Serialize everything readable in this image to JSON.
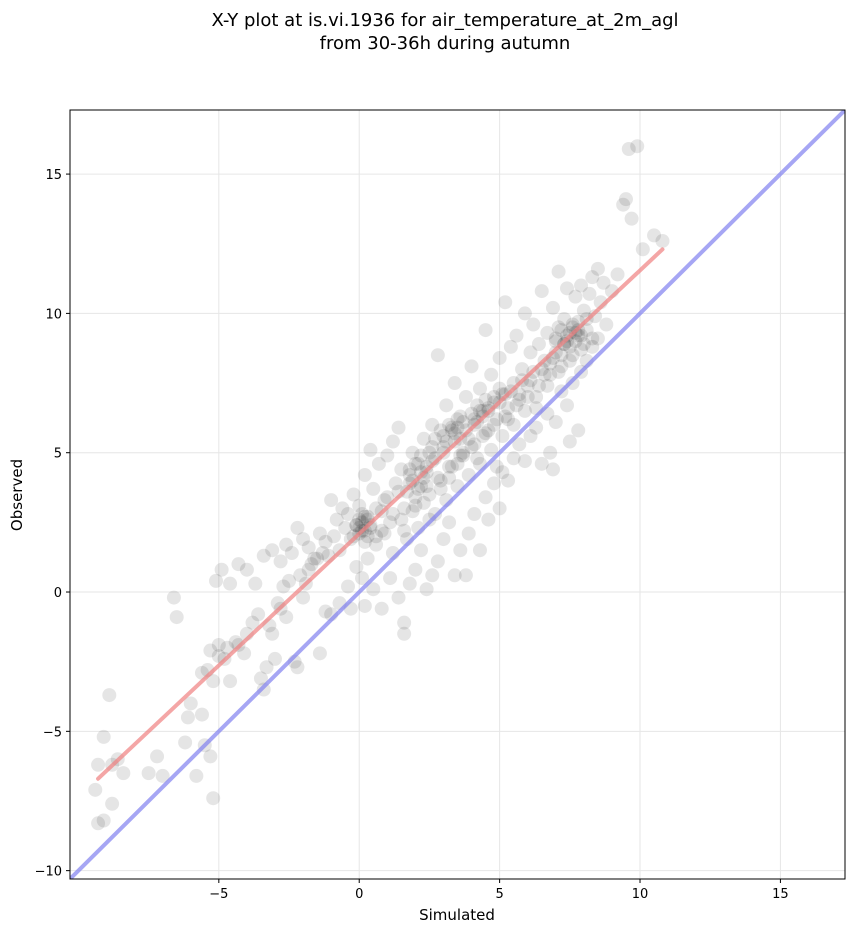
{
  "chart_data": {
    "type": "scatter",
    "title": "X-Y plot at is.vi.1936 for air_temperature_at_2m_agl",
    "subtitle": "from 30-36h during autumn",
    "xlabel": "Simulated",
    "ylabel": "Observed",
    "xlim": [
      -10.3,
      17.3
    ],
    "ylim": [
      -10.3,
      17.3
    ],
    "xticks": [
      -5,
      0,
      5,
      10,
      15
    ],
    "yticks": [
      -10,
      -5,
      0,
      5,
      10,
      15
    ],
    "xtick_labels": [
      "−5",
      "0",
      "5",
      "10",
      "15"
    ],
    "ytick_labels": [
      "−10",
      "−5",
      "0",
      "5",
      "10",
      "15"
    ],
    "grid": true,
    "colors": {
      "points": "#000000",
      "regression_line": "#f08080",
      "identity_line": "#8080f0",
      "grid": "#e6e6e6"
    },
    "points_opacity": 0.1,
    "lines": [
      {
        "kind": "regression",
        "x": [
          -9.3,
          10.8
        ],
        "y": [
          -6.7,
          12.3
        ]
      },
      {
        "kind": "identity",
        "x": [
          -10.3,
          17.3
        ],
        "y": [
          -10.3,
          17.3
        ]
      }
    ],
    "points": [
      [
        -9.4,
        -7.1
      ],
      [
        -9.3,
        -8.3
      ],
      [
        -9.1,
        -8.2
      ],
      [
        -9.3,
        -6.2
      ],
      [
        -9.1,
        -5.2
      ],
      [
        -8.9,
        -3.7
      ],
      [
        -8.8,
        -6.2
      ],
      [
        -8.6,
        -6.0
      ],
      [
        -8.8,
        -7.6
      ],
      [
        -8.4,
        -6.5
      ],
      [
        -7.5,
        -6.5
      ],
      [
        -7.2,
        -5.9
      ],
      [
        -7.0,
        -6.6
      ],
      [
        -6.6,
        -0.2
      ],
      [
        -6.5,
        -0.9
      ],
      [
        -6.2,
        -5.4
      ],
      [
        -6.1,
        -4.5
      ],
      [
        -6.0,
        -4.0
      ],
      [
        -5.8,
        -6.6
      ],
      [
        -5.6,
        -4.4
      ],
      [
        -5.5,
        -5.5
      ],
      [
        -5.3,
        -5.9
      ],
      [
        -5.2,
        -7.4
      ],
      [
        -5.4,
        -2.8
      ],
      [
        -5.6,
        -2.9
      ],
      [
        -5.2,
        -3.2
      ],
      [
        -5.3,
        -2.1
      ],
      [
        -5.0,
        -2.3
      ],
      [
        -4.8,
        -2.4
      ],
      [
        -4.7,
        -2.0
      ],
      [
        -5.0,
        -1.9
      ],
      [
        -4.6,
        -3.2
      ],
      [
        -4.4,
        -1.8
      ],
      [
        -4.3,
        -1.9
      ],
      [
        -4.1,
        -2.2
      ],
      [
        -4.0,
        -1.5
      ],
      [
        -3.8,
        -1.1
      ],
      [
        -3.6,
        -0.8
      ],
      [
        -3.5,
        -3.1
      ],
      [
        -3.4,
        -3.5
      ],
      [
        -3.3,
        -2.7
      ],
      [
        -3.2,
        -1.2
      ],
      [
        -3.1,
        -1.5
      ],
      [
        -3.0,
        -2.4
      ],
      [
        -2.9,
        -0.4
      ],
      [
        -2.8,
        -0.6
      ],
      [
        -2.7,
        0.2
      ],
      [
        -2.6,
        -0.9
      ],
      [
        -2.5,
        0.4
      ],
      [
        -2.3,
        -2.5
      ],
      [
        -2.2,
        -2.7
      ],
      [
        -2.1,
        0.6
      ],
      [
        -2.0,
        -0.2
      ],
      [
        -1.9,
        0.3
      ],
      [
        -1.8,
        0.8
      ],
      [
        -1.7,
        1.0
      ],
      [
        -1.5,
        1.2
      ],
      [
        -1.4,
        -2.2
      ],
      [
        -1.3,
        1.4
      ],
      [
        -1.2,
        -0.7
      ],
      [
        -5.1,
        0.4
      ],
      [
        -4.9,
        0.8
      ],
      [
        -4.6,
        0.3
      ],
      [
        -4.3,
        1.0
      ],
      [
        -4.0,
        0.8
      ],
      [
        -3.7,
        0.3
      ],
      [
        -3.4,
        1.3
      ],
      [
        -3.1,
        1.5
      ],
      [
        -2.8,
        1.1
      ],
      [
        -2.6,
        1.7
      ],
      [
        -2.4,
        1.4
      ],
      [
        -2.2,
        2.3
      ],
      [
        -2.0,
        1.9
      ],
      [
        -1.8,
        1.6
      ],
      [
        -1.6,
        1.2
      ],
      [
        -1.4,
        2.1
      ],
      [
        -1.2,
        1.8
      ],
      [
        -1.1,
        1.3
      ],
      [
        -1.0,
        3.3
      ],
      [
        -0.9,
        2.0
      ],
      [
        -0.8,
        2.6
      ],
      [
        -0.7,
        1.5
      ],
      [
        -0.6,
        3.0
      ],
      [
        -0.5,
        2.3
      ],
      [
        -0.4,
        2.8
      ],
      [
        -0.3,
        1.9
      ],
      [
        -0.2,
        3.5
      ],
      [
        -0.1,
        2.4
      ],
      [
        0.0,
        3.1
      ],
      [
        0.1,
        2.2
      ],
      [
        0.2,
        4.2
      ],
      [
        0.3,
        2.7
      ],
      [
        0.4,
        5.1
      ],
      [
        0.5,
        3.7
      ],
      [
        0.6,
        2.0
      ],
      [
        0.7,
        4.6
      ],
      [
        0.8,
        2.9
      ],
      [
        0.9,
        3.3
      ],
      [
        1.0,
        4.9
      ],
      [
        1.1,
        2.5
      ],
      [
        1.2,
        5.4
      ],
      [
        1.3,
        3.9
      ],
      [
        1.4,
        5.9
      ],
      [
        1.5,
        4.4
      ],
      [
        1.6,
        2.2
      ],
      [
        1.7,
        3.6
      ],
      [
        1.8,
        4.2
      ],
      [
        1.9,
        5.0
      ],
      [
        2.0,
        3.1
      ],
      [
        2.1,
        4.6
      ],
      [
        2.2,
        3.8
      ],
      [
        2.3,
        5.5
      ],
      [
        2.4,
        4.3
      ],
      [
        2.5,
        2.6
      ],
      [
        2.6,
        6.0
      ],
      [
        2.7,
        4.8
      ],
      [
        2.8,
        8.5
      ],
      [
        2.9,
        3.7
      ],
      [
        3.0,
        5.2
      ],
      [
        3.1,
        6.7
      ],
      [
        3.2,
        4.1
      ],
      [
        3.3,
        5.8
      ],
      [
        3.4,
        7.5
      ],
      [
        3.5,
        4.6
      ],
      [
        3.6,
        6.3
      ],
      [
        3.7,
        5.0
      ],
      [
        3.8,
        7.0
      ],
      [
        3.9,
        5.5
      ],
      [
        4.0,
        8.1
      ],
      [
        4.1,
        6.0
      ],
      [
        4.2,
        4.8
      ],
      [
        4.3,
        7.3
      ],
      [
        4.4,
        6.5
      ],
      [
        4.5,
        9.4
      ],
      [
        4.6,
        5.8
      ],
      [
        4.7,
        7.8
      ],
      [
        4.8,
        6.8
      ],
      [
        4.9,
        4.5
      ],
      [
        5.0,
        8.4
      ],
      [
        5.1,
        7.1
      ],
      [
        5.2,
        10.4
      ],
      [
        5.3,
        6.2
      ],
      [
        5.4,
        8.8
      ],
      [
        5.5,
        7.5
      ],
      [
        5.6,
        9.2
      ],
      [
        5.7,
        6.9
      ],
      [
        5.8,
        8.0
      ],
      [
        5.9,
        10.0
      ],
      [
        6.0,
        7.4
      ],
      [
        6.1,
        8.6
      ],
      [
        6.2,
        9.6
      ],
      [
        6.3,
        6.6
      ],
      [
        6.4,
        8.9
      ],
      [
        6.5,
        10.8
      ],
      [
        6.6,
        7.8
      ],
      [
        6.7,
        9.3
      ],
      [
        6.8,
        8.2
      ],
      [
        6.9,
        10.2
      ],
      [
        7.0,
        9.0
      ],
      [
        7.1,
        11.5
      ],
      [
        7.2,
        8.5
      ],
      [
        7.3,
        9.8
      ],
      [
        7.4,
        10.9
      ],
      [
        7.5,
        8.8
      ],
      [
        7.6,
        9.5
      ],
      [
        7.7,
        10.6
      ],
      [
        7.8,
        9.2
      ],
      [
        7.9,
        11.0
      ],
      [
        8.0,
        10.1
      ],
      [
        8.1,
        9.4
      ],
      [
        8.2,
        10.7
      ],
      [
        8.3,
        11.3
      ],
      [
        8.4,
        9.9
      ],
      [
        8.5,
        11.6
      ],
      [
        8.6,
        10.4
      ],
      [
        8.7,
        11.1
      ],
      [
        8.8,
        9.6
      ],
      [
        9.0,
        10.8
      ],
      [
        9.2,
        11.4
      ],
      [
        9.4,
        13.9
      ],
      [
        9.5,
        14.1
      ],
      [
        9.6,
        15.9
      ],
      [
        9.7,
        13.4
      ],
      [
        9.9,
        16.0
      ],
      [
        10.1,
        12.3
      ],
      [
        10.5,
        12.8
      ],
      [
        10.8,
        12.6
      ],
      [
        -0.3,
        -0.6
      ],
      [
        0.2,
        -0.5
      ],
      [
        0.5,
        0.1
      ],
      [
        0.8,
        -0.6
      ],
      [
        1.1,
        0.5
      ],
      [
        1.4,
        -0.2
      ],
      [
        1.6,
        -1.5
      ],
      [
        1.6,
        -1.1
      ],
      [
        1.8,
        0.3
      ],
      [
        2.0,
        0.8
      ],
      [
        2.2,
        1.5
      ],
      [
        2.4,
        0.1
      ],
      [
        2.6,
        0.6
      ],
      [
        2.8,
        1.1
      ],
      [
        3.0,
        1.9
      ],
      [
        3.2,
        2.5
      ],
      [
        3.4,
        0.6
      ],
      [
        3.6,
        1.5
      ],
      [
        3.8,
        0.6
      ],
      [
        3.9,
        2.1
      ],
      [
        4.1,
        2.8
      ],
      [
        4.3,
        1.5
      ],
      [
        4.5,
        3.4
      ],
      [
        4.6,
        2.6
      ],
      [
        4.8,
        3.9
      ],
      [
        5.0,
        3.0
      ],
      [
        5.1,
        4.3
      ],
      [
        5.3,
        4.0
      ],
      [
        5.5,
        4.8
      ],
      [
        5.7,
        5.3
      ],
      [
        5.9,
        4.7
      ],
      [
        6.1,
        5.6
      ],
      [
        6.3,
        5.9
      ],
      [
        6.5,
        4.6
      ],
      [
        6.7,
        6.4
      ],
      [
        6.8,
        5.0
      ],
      [
        6.9,
        4.4
      ],
      [
        7.0,
        6.1
      ],
      [
        7.2,
        7.2
      ],
      [
        7.4,
        6.7
      ],
      [
        7.5,
        5.4
      ],
      [
        7.6,
        7.5
      ],
      [
        7.8,
        5.8
      ],
      [
        7.9,
        7.9
      ],
      [
        8.1,
        8.3
      ],
      [
        8.3,
        8.8
      ],
      [
        8.5,
        9.1
      ],
      [
        -1.0,
        -0.8
      ],
      [
        -0.7,
        -0.4
      ],
      [
        -0.4,
        0.2
      ],
      [
        -0.1,
        0.9
      ],
      [
        0.1,
        0.5
      ],
      [
        0.3,
        1.2
      ],
      [
        0.6,
        1.7
      ],
      [
        0.9,
        2.1
      ],
      [
        1.2,
        1.4
      ],
      [
        1.5,
        2.6
      ],
      [
        1.7,
        1.9
      ],
      [
        1.9,
        2.9
      ],
      [
        2.1,
        2.3
      ],
      [
        2.3,
        3.2
      ],
      [
        2.5,
        3.5
      ],
      [
        2.7,
        2.8
      ],
      [
        2.9,
        4.0
      ],
      [
        3.1,
        3.3
      ],
      [
        3.3,
        4.5
      ],
      [
        3.5,
        3.8
      ],
      [
        3.7,
        4.9
      ],
      [
        3.9,
        4.2
      ],
      [
        4.1,
        5.3
      ],
      [
        4.3,
        4.6
      ],
      [
        4.5,
        5.7
      ],
      [
        4.7,
        5.1
      ],
      [
        4.9,
        6.2
      ],
      [
        5.1,
        5.6
      ],
      [
        5.3,
        6.6
      ],
      [
        5.5,
        6.0
      ],
      [
        5.7,
        7.1
      ],
      [
        5.9,
        6.5
      ],
      [
        6.1,
        7.6
      ],
      [
        6.3,
        7.0
      ],
      [
        6.5,
        8.0
      ],
      [
        6.7,
        7.4
      ],
      [
        6.9,
        8.4
      ],
      [
        7.1,
        7.9
      ],
      [
        7.3,
        8.9
      ],
      [
        7.5,
        8.3
      ],
      [
        7.7,
        9.3
      ],
      [
        7.9,
        8.7
      ],
      [
        8.1,
        9.8
      ],
      [
        8.3,
        9.1
      ],
      [
        -0.2,
        2.0
      ],
      [
        0.0,
        2.6
      ],
      [
        0.2,
        1.8
      ],
      [
        0.4,
        2.4
      ],
      [
        0.6,
        3.0
      ],
      [
        0.8,
        2.2
      ],
      [
        1.0,
        3.4
      ],
      [
        1.2,
        2.8
      ],
      [
        1.4,
        3.6
      ],
      [
        1.6,
        3.0
      ],
      [
        1.8,
        3.9
      ],
      [
        2.0,
        3.4
      ],
      [
        2.2,
        4.3
      ],
      [
        2.4,
        3.8
      ],
      [
        2.6,
        4.7
      ],
      [
        2.8,
        4.1
      ],
      [
        3.0,
        5.0
      ],
      [
        3.2,
        4.5
      ],
      [
        3.4,
        5.4
      ],
      [
        3.6,
        4.9
      ],
      [
        3.8,
        5.8
      ],
      [
        4.0,
        5.2
      ],
      [
        4.2,
        6.1
      ],
      [
        4.4,
        5.6
      ],
      [
        4.6,
        6.5
      ],
      [
        4.8,
        6.0
      ],
      [
        5.0,
        6.8
      ],
      [
        5.2,
        6.3
      ],
      [
        5.4,
        7.2
      ],
      [
        5.6,
        6.7
      ],
      [
        5.8,
        7.6
      ],
      [
        6.0,
        7.0
      ],
      [
        6.2,
        7.9
      ],
      [
        6.4,
        7.4
      ],
      [
        6.6,
        8.3
      ],
      [
        6.8,
        7.8
      ],
      [
        7.0,
        8.6
      ],
      [
        7.2,
        8.1
      ],
      [
        7.4,
        9.0
      ],
      [
        7.6,
        8.5
      ],
      [
        7.8,
        9.4
      ],
      [
        8.0,
        8.9
      ],
      [
        3.0,
        5.6
      ],
      [
        3.2,
        6.0
      ],
      [
        3.4,
        5.7
      ],
      [
        3.5,
        6.2
      ],
      [
        3.6,
        5.5
      ],
      [
        3.7,
        6.1
      ],
      [
        3.3,
        5.9
      ],
      [
        3.1,
        5.4
      ],
      [
        2.9,
        5.8
      ],
      [
        3.5,
        5.9
      ],
      [
        0.0,
        2.3
      ],
      [
        0.1,
        2.5
      ],
      [
        0.2,
        2.2
      ],
      [
        0.3,
        2.6
      ],
      [
        -0.1,
        2.4
      ],
      [
        0.4,
        2.3
      ],
      [
        0.2,
        2.7
      ],
      [
        0.0,
        2.1
      ],
      [
        0.3,
        2.0
      ],
      [
        0.1,
        2.8
      ],
      [
        7.0,
        9.1
      ],
      [
        7.2,
        9.4
      ],
      [
        7.4,
        9.2
      ],
      [
        7.6,
        9.6
      ],
      [
        7.3,
        8.9
      ],
      [
        7.5,
        9.3
      ],
      [
        7.7,
        9.0
      ],
      [
        7.1,
        9.5
      ],
      [
        7.8,
        9.7
      ],
      [
        7.9,
        9.2
      ],
      [
        4.0,
        6.4
      ],
      [
        4.2,
        6.7
      ],
      [
        4.4,
        6.3
      ],
      [
        4.5,
        6.9
      ],
      [
        4.1,
        6.2
      ],
      [
        4.3,
        6.5
      ],
      [
        4.6,
        6.6
      ],
      [
        4.8,
        7.0
      ],
      [
        5.0,
        7.3
      ],
      [
        5.2,
        7.1
      ],
      [
        2.0,
        4.6
      ],
      [
        2.2,
        4.9
      ],
      [
        2.4,
        4.5
      ],
      [
        2.5,
        5.0
      ],
      [
        1.8,
        4.4
      ],
      [
        2.3,
        4.1
      ],
      [
        1.9,
        4.0
      ],
      [
        2.1,
        3.7
      ],
      [
        2.6,
        5.2
      ],
      [
        2.7,
        5.5
      ]
    ]
  }
}
